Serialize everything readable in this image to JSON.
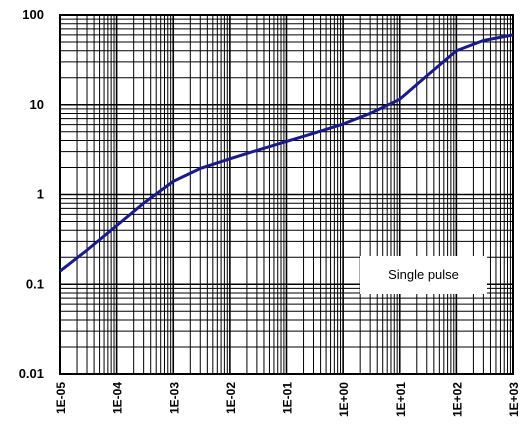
{
  "chart_data": {
    "type": "line",
    "title": "",
    "xlabel": "",
    "ylabel": "",
    "x_scale": "log",
    "y_scale": "log",
    "xlim": [
      1e-05,
      1000
    ],
    "ylim": [
      0.01,
      100
    ],
    "grid": true,
    "x_tick_labels": [
      "1E-05",
      "1E-04",
      "1E-03",
      "1E-02",
      "1E-01",
      "1E+00",
      "1E+01",
      "1E+02",
      "1E+03"
    ],
    "y_tick_labels": [
      "0.01",
      "0.1",
      "1",
      "10",
      "100"
    ],
    "series": [
      {
        "x": [
          1e-05,
          3e-05,
          0.0001,
          0.0003,
          0.001,
          0.003,
          0.01,
          0.03,
          0.1,
          0.3,
          1,
          3,
          10,
          30,
          100,
          300,
          1000
        ],
        "y": [
          0.14,
          0.24,
          0.45,
          0.8,
          1.4,
          1.95,
          2.5,
          3.1,
          3.9,
          4.8,
          6.1,
          8.0,
          11.5,
          21,
          40,
          52,
          60
        ],
        "color": "#1a1a8a"
      }
    ],
    "annotations": [
      {
        "text": "Single pulse",
        "placement": "lower-right"
      }
    ]
  }
}
